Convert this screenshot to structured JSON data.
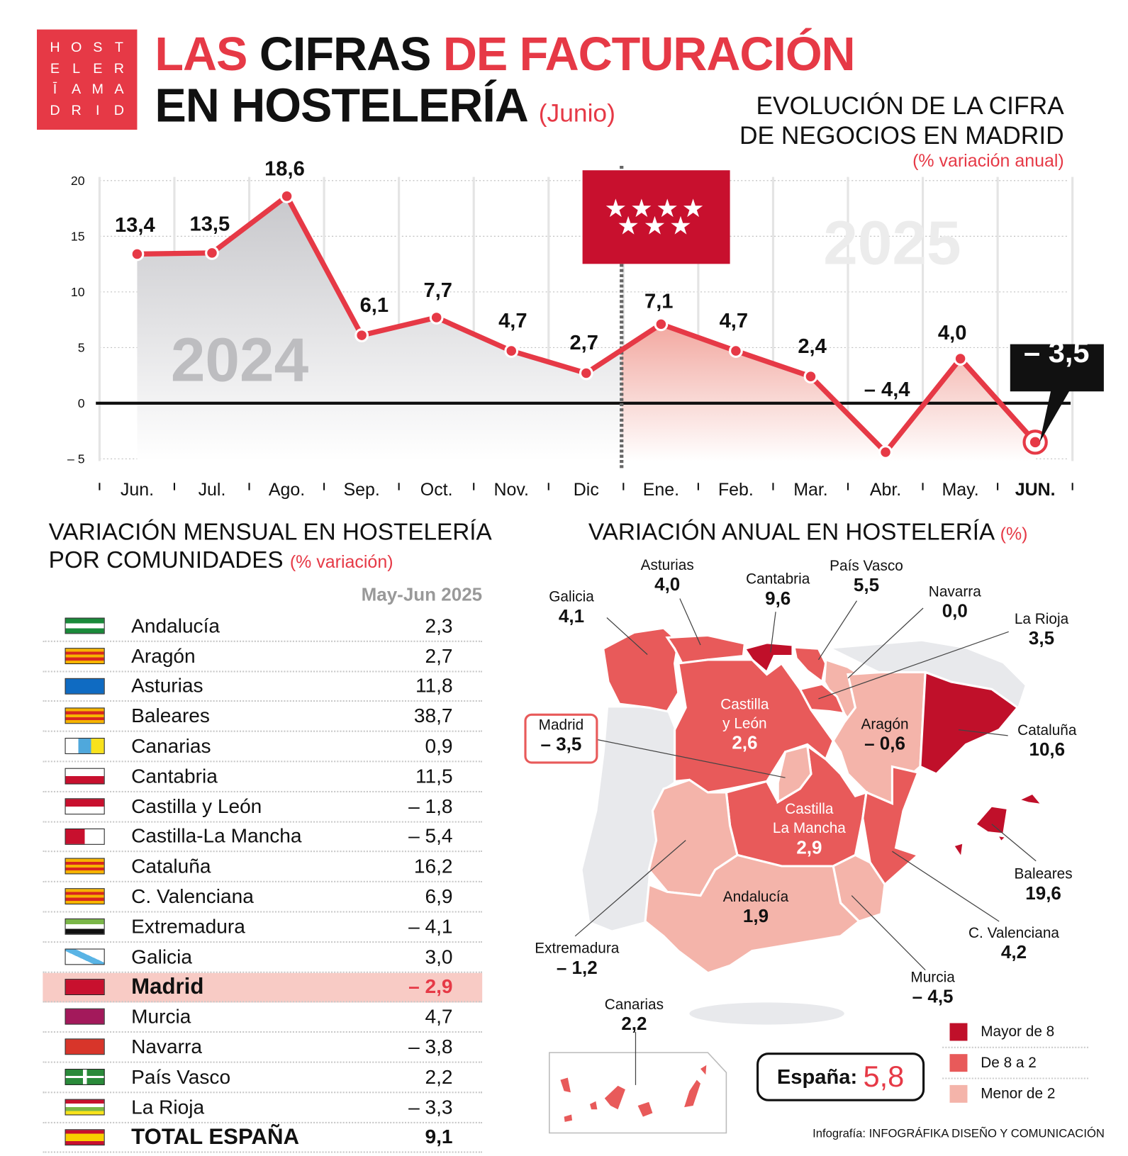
{
  "logo": {
    "letters": [
      "H",
      "O",
      "S",
      "T",
      "E",
      "L",
      "E",
      "R",
      "Ī",
      "A",
      "M",
      "A",
      "D",
      "R",
      "I",
      "D"
    ],
    "text": "HOSTELERÍA MADRID"
  },
  "header": {
    "title_part1": "LAS",
    "title_part2": "CIFRAS",
    "title_part3": "DE FACTURACIÓN",
    "title_line2": "EN HOSTELERÍA",
    "subtitle": "(Junio)"
  },
  "chart_data": {
    "type": "line",
    "title_line1": "EVOLUCIÓN DE LA CIFRA",
    "title_line2": "DE NEGOCIOS EN MADRID",
    "subtitle": "(% variación anual)",
    "categories": [
      "Jun.",
      "Jul.",
      "Ago.",
      "Sep.",
      "Oct.",
      "Nov.",
      "Dic",
      "Ene.",
      "Feb.",
      "Mar.",
      "Abr.",
      "May.",
      "JUN."
    ],
    "values": [
      13.4,
      13.5,
      18.6,
      6.1,
      7.7,
      4.7,
      2.7,
      7.1,
      4.7,
      2.4,
      -4.4,
      4.0,
      -3.5
    ],
    "labels": [
      "13,4",
      "13,5",
      "18,6",
      "6,1",
      "7,7",
      "4,7",
      "2,7",
      "7,1",
      "4,7",
      "2,4",
      "– 4,4",
      "4,0",
      "– 3,5"
    ],
    "yticks": [
      20,
      15,
      10,
      5,
      0,
      -5
    ],
    "ytick_labels": [
      "20",
      "15",
      "10",
      "5",
      "0",
      "– 5"
    ],
    "ylim": [
      -6,
      21
    ],
    "year_labels": [
      "2024",
      "2025"
    ],
    "grid": true,
    "colors": {
      "line": "#e63946",
      "area2024": "#c8c8cc",
      "area2025": "#f2a8a0",
      "flag": "#c8102e"
    }
  },
  "monthly": {
    "title_line1": "VARIACIÓN MENSUAL EN HOSTELERÍA",
    "title_line2": "POR COMUNIDADES",
    "title_pct": "(% variación)",
    "column_header": "May-Jun 2025",
    "rows": [
      {
        "name": "Andalucía",
        "value": "2,3",
        "flag": [
          "#1a8a3a",
          "#fff",
          "#1a8a3a"
        ]
      },
      {
        "name": "Aragón",
        "value": "2,7",
        "flag": [
          "#f6b400",
          "#d8261f",
          "#f6b400",
          "#d8261f",
          "#f6b400"
        ]
      },
      {
        "name": "Asturias",
        "value": "11,8",
        "flag": [
          "#0f6bc2"
        ]
      },
      {
        "name": "Baleares",
        "value": "38,7",
        "flag": [
          "#f6b400",
          "#d8261f",
          "#f6b400",
          "#d8261f",
          "#f6b400"
        ]
      },
      {
        "name": "Canarias",
        "value": "0,9",
        "flag": [
          "#fff",
          "#4fa8dc",
          "#f8e21c"
        ],
        "vertical": true
      },
      {
        "name": "Cantabria",
        "value": "11,5",
        "flag": [
          "#fff",
          "#c8102e"
        ]
      },
      {
        "name": "Castilla y León",
        "value": "– 1,8",
        "flag": [
          "#c8102e",
          "#fff"
        ]
      },
      {
        "name": "Castilla-La Mancha",
        "value": "– 5,4",
        "flag": [
          "#c8102e",
          "#fff"
        ],
        "vertical": true
      },
      {
        "name": "Cataluña",
        "value": "16,2",
        "flag": [
          "#f6b400",
          "#d8261f",
          "#f6b400",
          "#d8261f",
          "#f6b400"
        ]
      },
      {
        "name": "C. Valenciana",
        "value": "6,9",
        "flag": [
          "#f6b400",
          "#d8261f",
          "#f6b400",
          "#d8261f",
          "#f6b400"
        ]
      },
      {
        "name": "Extremadura",
        "value": "– 4,1",
        "flag": [
          "#7ab648",
          "#fff",
          "#111"
        ]
      },
      {
        "name": "Galicia",
        "value": "3,0",
        "flag": [
          "#fff"
        ]
      },
      {
        "name": "Madrid",
        "value": "– 2,9",
        "flag": [
          "#c8102e"
        ],
        "highlight": true
      },
      {
        "name": "Murcia",
        "value": "4,7",
        "flag": [
          "#a3195b"
        ]
      },
      {
        "name": "Navarra",
        "value": "– 3,8",
        "flag": [
          "#d8352a"
        ]
      },
      {
        "name": "País Vasco",
        "value": "2,2",
        "flag": [
          "#d8261f"
        ]
      },
      {
        "name": "La Rioja",
        "value": "– 3,3",
        "flag": [
          "#c8102e",
          "#fff",
          "#7ab648",
          "#f8e21c"
        ]
      },
      {
        "name": "TOTAL ESPAÑA",
        "value": "9,1",
        "flag": [
          "#c8102e",
          "#f8d000",
          "#f8d000",
          "#c8102e"
        ],
        "total": true
      }
    ]
  },
  "annual": {
    "title": "VARIACIÓN ANUAL EN HOSTELERÍA",
    "title_pct": "(%)",
    "regions": {
      "galicia": {
        "name": "Galicia",
        "value": "4,1",
        "cat": "mid"
      },
      "asturias": {
        "name": "Asturias",
        "value": "4,0",
        "cat": "mid"
      },
      "cantabria": {
        "name": "Cantabria",
        "value": "9,6",
        "cat": "high"
      },
      "paisvasco": {
        "name": "País Vasco",
        "value": "5,5",
        "cat": "mid"
      },
      "navarra": {
        "name": "Navarra",
        "value": "0,0",
        "cat": "low"
      },
      "larioja": {
        "name": "La Rioja",
        "value": "3,5",
        "cat": "mid"
      },
      "cataluna": {
        "name": "Cataluña",
        "value": "10,6",
        "cat": "high"
      },
      "aragon": {
        "name": "Aragón",
        "value": "– 0,6",
        "cat": "low"
      },
      "cyl": {
        "name1": "Castilla",
        "name2": "y León",
        "value": "2,6",
        "cat": "mid"
      },
      "madrid": {
        "name": "Madrid",
        "value": "– 3,5",
        "cat": "low"
      },
      "clm": {
        "name1": "Castilla",
        "name2": "La Mancha",
        "value": "2,9",
        "cat": "mid"
      },
      "baleares": {
        "name": "Baleares",
        "value": "19,6",
        "cat": "high"
      },
      "extremadura": {
        "name": "Extremadura",
        "value": "– 1,2",
        "cat": "low"
      },
      "andalucia": {
        "name": "Andalucía",
        "value": "1,9",
        "cat": "low"
      },
      "valenciana": {
        "name": "C. Valenciana",
        "value": "4,2",
        "cat": "mid"
      },
      "murcia": {
        "name": "Murcia",
        "value": "– 4,5",
        "cat": "low"
      },
      "canarias": {
        "name": "Canarias",
        "value": "2,2",
        "cat": "mid"
      }
    },
    "colors": {
      "high": "#c0102a",
      "mid": "#e85a5a",
      "low": "#f4b4aa",
      "bg": "#e8e9ec"
    },
    "legend": [
      {
        "label": "Mayor de 8",
        "cat": "high"
      },
      {
        "label": "De 8 a 2",
        "cat": "mid"
      },
      {
        "label": "Menor de 2",
        "cat": "low"
      }
    ],
    "spain_label": "España:",
    "spain_value": "5,8"
  },
  "credit": "Infografía: INFOGRÁFIKA DISEÑO Y COMUNICACIÓN"
}
